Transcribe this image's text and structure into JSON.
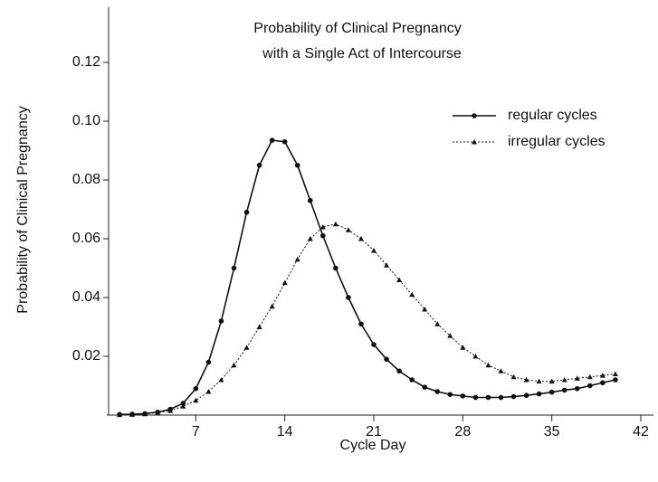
{
  "chart_data": {
    "type": "line",
    "title": [
      "Probability of Clinical Pregnancy",
      "with a Single Act of Intercourse"
    ],
    "xlabel": "Cycle Day",
    "ylabel": "Probability of Clinical Pregnancy",
    "x": [
      1,
      2,
      3,
      4,
      5,
      6,
      7,
      8,
      9,
      10,
      11,
      12,
      13,
      14,
      15,
      16,
      17,
      18,
      19,
      20,
      21,
      22,
      23,
      24,
      25,
      26,
      27,
      28,
      29,
      30,
      31,
      32,
      33,
      34,
      35,
      36,
      37,
      38,
      39,
      40
    ],
    "series": [
      {
        "name": "regular cycles",
        "color": "#111111",
        "marker": "circle",
        "dash": "solid",
        "values": [
          0.0002,
          0.0003,
          0.0005,
          0.001,
          0.002,
          0.004,
          0.009,
          0.018,
          0.032,
          0.05,
          0.069,
          0.085,
          0.0935,
          0.093,
          0.085,
          0.073,
          0.061,
          0.05,
          0.04,
          0.031,
          0.024,
          0.019,
          0.015,
          0.012,
          0.0095,
          0.008,
          0.007,
          0.0065,
          0.006,
          0.006,
          0.006,
          0.0063,
          0.0067,
          0.0072,
          0.0078,
          0.0085,
          0.009,
          0.01,
          0.011,
          0.012
        ]
      },
      {
        "name": "irregular cycles",
        "color": "#111111",
        "marker": "triangle",
        "dash": "dotted",
        "values": [
          0.0001,
          0.0002,
          0.0004,
          0.0008,
          0.0015,
          0.003,
          0.005,
          0.008,
          0.012,
          0.017,
          0.023,
          0.03,
          0.037,
          0.045,
          0.053,
          0.06,
          0.064,
          0.065,
          0.063,
          0.06,
          0.056,
          0.051,
          0.046,
          0.041,
          0.036,
          0.031,
          0.027,
          0.023,
          0.02,
          0.017,
          0.015,
          0.013,
          0.012,
          0.0115,
          0.0115,
          0.012,
          0.0125,
          0.013,
          0.0135,
          0.014
        ]
      }
    ],
    "xlim": [
      0,
      42
    ],
    "xticks": [
      7,
      14,
      21,
      28,
      35,
      42
    ],
    "ylim": [
      0,
      0.14
    ],
    "yticks": [
      0.02,
      0.04,
      0.06,
      {
        "value": 0.1,
        "label": "0.10"
      },
      0.08,
      0.12
    ],
    "legend": "upper right"
  }
}
